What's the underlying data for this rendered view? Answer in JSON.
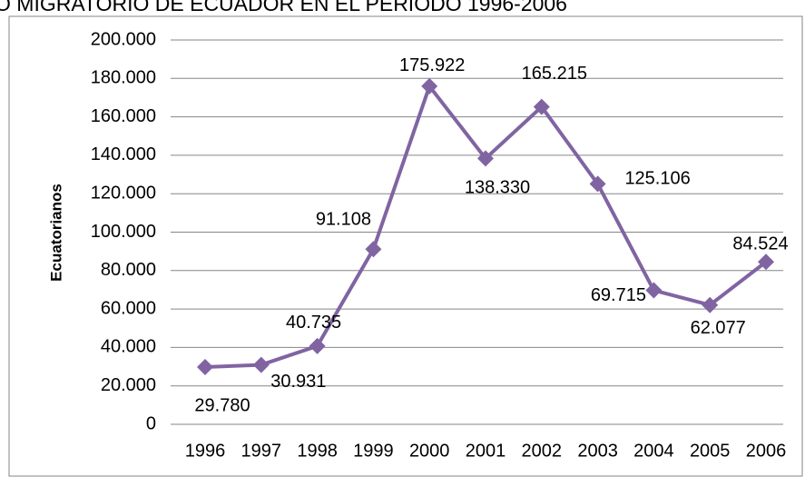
{
  "chart_data": {
    "type": "line",
    "title": "O MIGRATORIO DE ECUADOR EN EL PERIODO 1996-2006",
    "y_label": "Ecuatorianos",
    "categories": [
      "1996",
      "1997",
      "1998",
      "1999",
      "2000",
      "2001",
      "2002",
      "2003",
      "2004",
      "2005",
      "2006"
    ],
    "series": [
      {
        "name": "Ecuatorianos",
        "color": "#8064a2",
        "values": [
          29780,
          30931,
          40735,
          91108,
          175922,
          138330,
          165215,
          125106,
          69715,
          62077,
          84524
        ],
        "value_labels": [
          "29.780",
          "30.931",
          "40.735",
          "91.108",
          "175.922",
          "138.330",
          "165.215",
          "125.106",
          "69.715",
          "62.077",
          "84.524"
        ]
      }
    ],
    "ylim": [
      0,
      200000
    ],
    "yticks": [
      0,
      {
        "value": 20000,
        "label": "20.000"
      },
      {
        "value": 40000,
        "label": "40.000"
      },
      {
        "value": 60000,
        "label": "60.000"
      },
      {
        "value": 80000,
        "label": "80.000"
      },
      {
        "value": 100000,
        "label": "100.000"
      },
      {
        "value": 120000,
        "label": "120.000"
      },
      {
        "value": 140000,
        "label": "140.000"
      },
      {
        "value": 160000,
        "label": "160.000"
      },
      {
        "value": 180000,
        "label": "180.000"
      },
      {
        "value": 200000,
        "label": "200.000"
      }
    ],
    "grid": true
  }
}
